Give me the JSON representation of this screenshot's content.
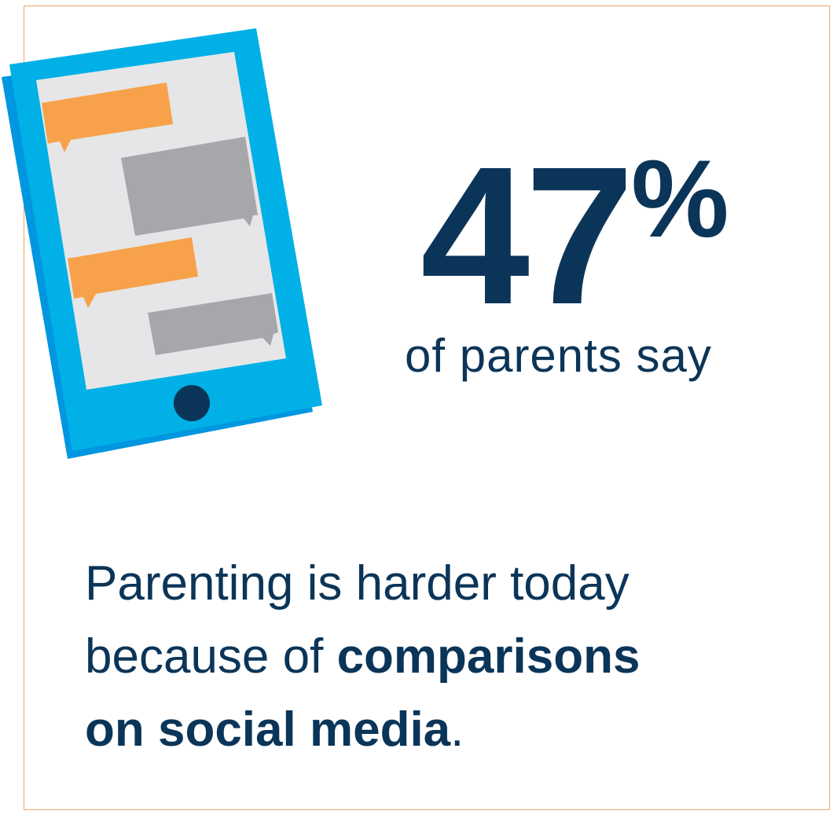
{
  "stat": {
    "number": "47",
    "unit": "%",
    "caption": "of parents say"
  },
  "statement": {
    "line1": "Parenting is harder today",
    "line2_plain": "because of ",
    "line2_bold": "comparisons",
    "line3_bold": "on social media",
    "line3_end": "."
  },
  "colors": {
    "navy": "#0b3558",
    "tablet_blue": "#00b0e6",
    "tablet_shadow": "#0096e0",
    "screen": "#e6e6e8",
    "orange_bubble": "#f7a24b",
    "gray_bubble": "#a6a7aa",
    "frame_border": "#f4a460"
  },
  "illustration": {
    "icon": "tablet-chat-icon"
  }
}
